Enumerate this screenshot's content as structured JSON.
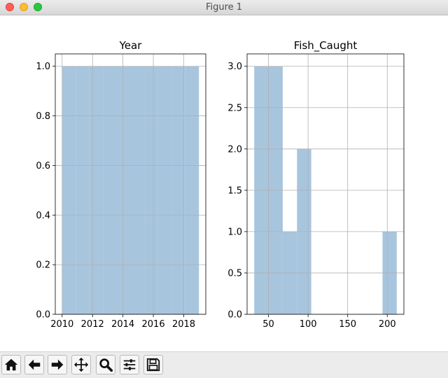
{
  "window": {
    "title": "Figure 1"
  },
  "toolbar": {
    "buttons": [
      {
        "icon": "home-icon"
      },
      {
        "icon": "back-arrow-icon"
      },
      {
        "icon": "forward-arrow-icon"
      },
      {
        "icon": "pan-move-icon"
      },
      {
        "icon": "zoom-magnifier-icon"
      },
      {
        "icon": "configure-subplots-icon"
      },
      {
        "icon": "save-floppy-icon"
      }
    ]
  },
  "chart_data": [
    {
      "type": "bar",
      "title": "Year",
      "xlabel": "",
      "ylabel": "",
      "grid": true,
      "color": "#a8c5de",
      "xlim": [
        2009.55,
        2019.45
      ],
      "ylim": [
        0,
        1.05
      ],
      "xticks": [
        "2010",
        "2012",
        "2014",
        "2016",
        "2018"
      ],
      "yticks": [
        "0.0",
        "0.2",
        "0.4",
        "0.6",
        "0.8",
        "1.0"
      ],
      "bins": [
        {
          "x0": 2010.0,
          "x1": 2010.9,
          "value": 1
        },
        {
          "x0": 2010.9,
          "x1": 2011.8,
          "value": 1
        },
        {
          "x0": 2011.8,
          "x1": 2012.7,
          "value": 1
        },
        {
          "x0": 2012.7,
          "x1": 2013.6,
          "value": 1
        },
        {
          "x0": 2013.6,
          "x1": 2014.5,
          "value": 1
        },
        {
          "x0": 2014.5,
          "x1": 2015.4,
          "value": 1
        },
        {
          "x0": 2015.4,
          "x1": 2016.3,
          "value": 1
        },
        {
          "x0": 2016.3,
          "x1": 2017.2,
          "value": 1
        },
        {
          "x0": 2017.2,
          "x1": 2018.1,
          "value": 1
        },
        {
          "x0": 2018.1,
          "x1": 2019.0,
          "value": 1
        }
      ]
    },
    {
      "type": "bar",
      "title": "Fish_Caught",
      "xlabel": "",
      "ylabel": "",
      "grid": true,
      "color": "#a8c5de",
      "xlim": [
        23,
        221
      ],
      "ylim": [
        0,
        3.15
      ],
      "xticks": [
        "50",
        "100",
        "150",
        "200"
      ],
      "yticks": [
        "0.0",
        "0.5",
        "1.0",
        "1.5",
        "2.0",
        "2.5",
        "3.0"
      ],
      "bins": [
        {
          "x0": 32,
          "x1": 50,
          "value": 3
        },
        {
          "x0": 50,
          "x1": 68,
          "value": 3
        },
        {
          "x0": 68,
          "x1": 86,
          "value": 1
        },
        {
          "x0": 86,
          "x1": 104,
          "value": 2
        },
        {
          "x0": 104,
          "x1": 122,
          "value": 0
        },
        {
          "x0": 122,
          "x1": 140,
          "value": 0
        },
        {
          "x0": 140,
          "x1": 158,
          "value": 0
        },
        {
          "x0": 158,
          "x1": 176,
          "value": 0
        },
        {
          "x0": 176,
          "x1": 194,
          "value": 0
        },
        {
          "x0": 194,
          "x1": 212,
          "value": 1
        }
      ]
    }
  ]
}
